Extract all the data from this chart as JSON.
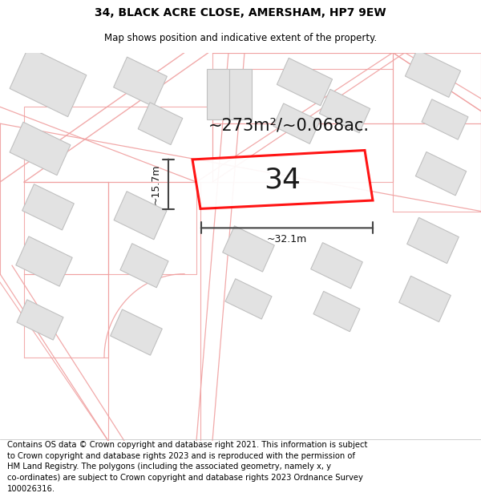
{
  "title": "34, BLACK ACRE CLOSE, AMERSHAM, HP7 9EW",
  "subtitle": "Map shows position and indicative extent of the property.",
  "area_text": "~273m²/~0.068ac.",
  "number_label": "34",
  "width_label": "~32.1m",
  "height_label": "~15.7m",
  "footer_text": "Contains OS data © Crown copyright and database right 2021. This information is subject to Crown copyright and database rights 2023 and is reproduced with the permission of HM Land Registry. The polygons (including the associated geometry, namely x, y co-ordinates) are subject to Crown copyright and database rights 2023 Ordnance Survey 100026316.",
  "background_color": "#ffffff",
  "map_bg_color": "#f8f8f8",
  "building_fill": "#e2e2e2",
  "building_stroke": "#c0c0c0",
  "road_line_color": "#f0a0a0",
  "plot_stroke": "#ff0000",
  "plot_fill": "#ffffff",
  "dim_line_color": "#444444",
  "title_fontsize": 10,
  "subtitle_fontsize": 8.5,
  "area_fontsize": 15,
  "number_fontsize": 26,
  "dim_fontsize": 9,
  "footer_fontsize": 7.2
}
